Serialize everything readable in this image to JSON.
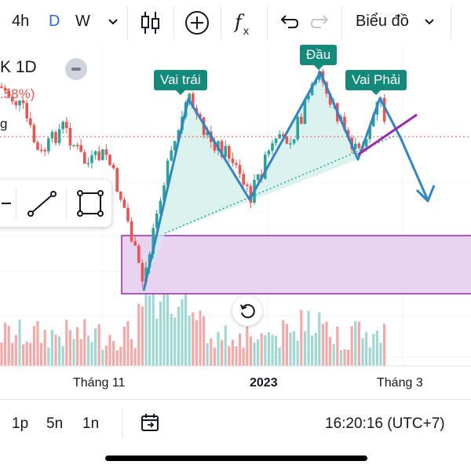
{
  "toolbar": {
    "intervals": [
      "4h",
      "D",
      "W"
    ],
    "active_interval": "D",
    "chart_type_label": "Biểu đồ",
    "icons": [
      "candlestick-icon",
      "add-indicator-icon",
      "fx-icon",
      "undo-icon",
      "redo-icon",
      "chevron-down-icon"
    ]
  },
  "symbol": {
    "name": "K  1D",
    "change_pct": ".58%)",
    "left_char": "g"
  },
  "annotations": {
    "left_shoulder": "Vai trái",
    "head": "Đầu",
    "right_shoulder": "Vai Phải"
  },
  "x_axis": {
    "labels": [
      "Tháng 11",
      "2023",
      "Tháng 3"
    ]
  },
  "bottom": {
    "ranges": [
      "1p",
      "5n",
      "1n"
    ],
    "time": "16:20:16 (UTC+7)"
  },
  "colors": {
    "up": "#26a69a",
    "down": "#ef5350",
    "pattern_line": "#2e86c8",
    "pattern_fill": "#cfeee9",
    "support_zone": "#e8d3f1",
    "support_border": "#9c27b0",
    "tag_bg": "#138a7a",
    "trend_line": "#9c27b0"
  }
}
